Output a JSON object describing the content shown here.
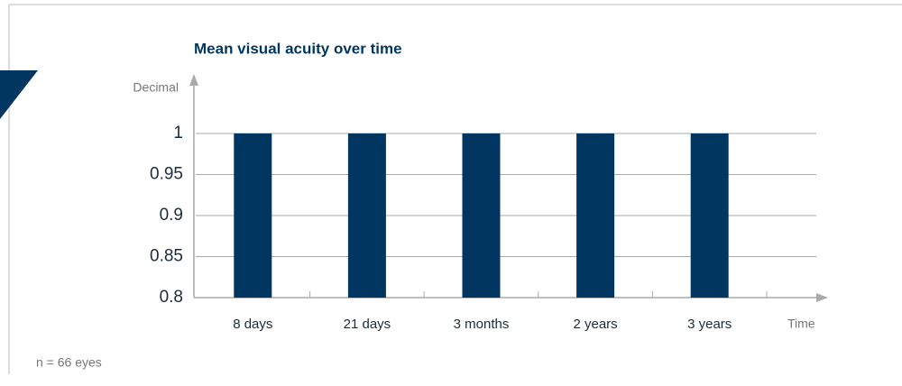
{
  "chart_data": {
    "type": "bar",
    "title": "Mean visual acuity over time",
    "ylabel": "Decimal",
    "xlabel": "Time",
    "note": "n = 66 eyes",
    "categories": [
      "8 days",
      "21 days",
      "3 months",
      "2 years",
      "3 years"
    ],
    "values": [
      1,
      1,
      1,
      1,
      1
    ],
    "color": "#00365f",
    "ylim": [
      0.8,
      1
    ],
    "yticks": [
      0.8,
      0.85,
      0.9,
      0.95,
      1
    ],
    "grid": true
  }
}
